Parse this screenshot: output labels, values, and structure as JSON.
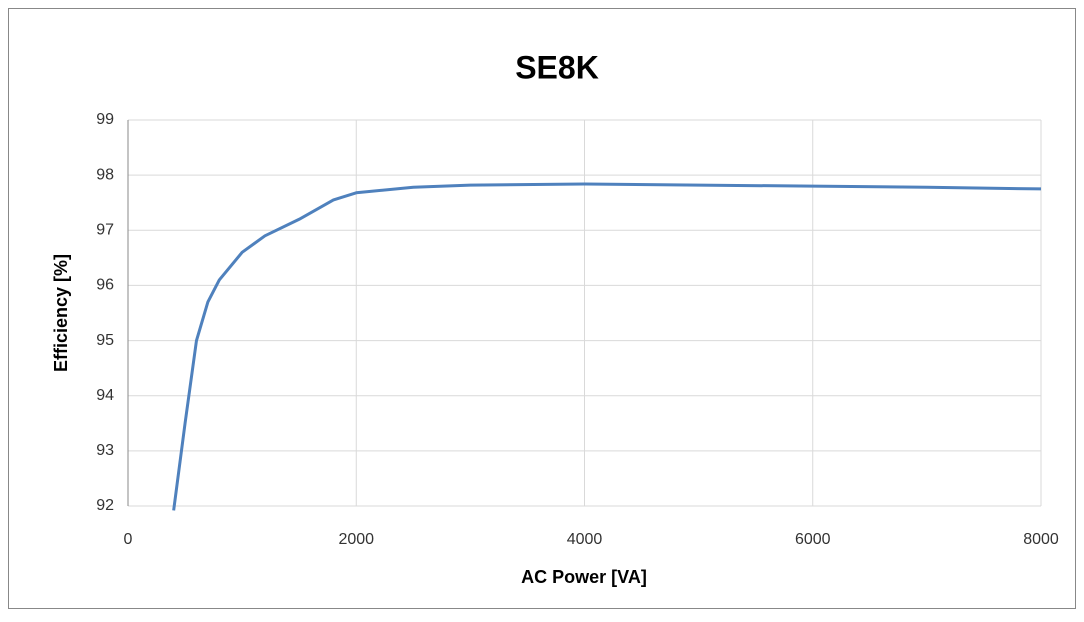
{
  "chart_data": {
    "type": "line",
    "title": "SE8K",
    "x_label": "AC Power [VA]",
    "y_label": "Efficiency [%]",
    "x": [
      400,
      500,
      600,
      700,
      800,
      1000,
      1200,
      1500,
      1800,
      2000,
      2500,
      3000,
      4000,
      5000,
      6000,
      7000,
      8000
    ],
    "series": [
      {
        "name": "SE8K",
        "color": "#4f81bd",
        "values": [
          91.92,
          93.5,
          95.0,
          95.7,
          96.1,
          96.6,
          96.9,
          97.2,
          97.55,
          97.68,
          97.78,
          97.82,
          97.84,
          97.82,
          97.8,
          97.78,
          97.75
        ]
      }
    ],
    "xlim": [
      0,
      8000
    ],
    "xticks": [
      0,
      2000,
      4000,
      6000,
      8000
    ],
    "ylim": [
      92,
      99
    ],
    "yticks": [
      92,
      93,
      94,
      95,
      96,
      97,
      98,
      99
    ],
    "grid": true
  }
}
